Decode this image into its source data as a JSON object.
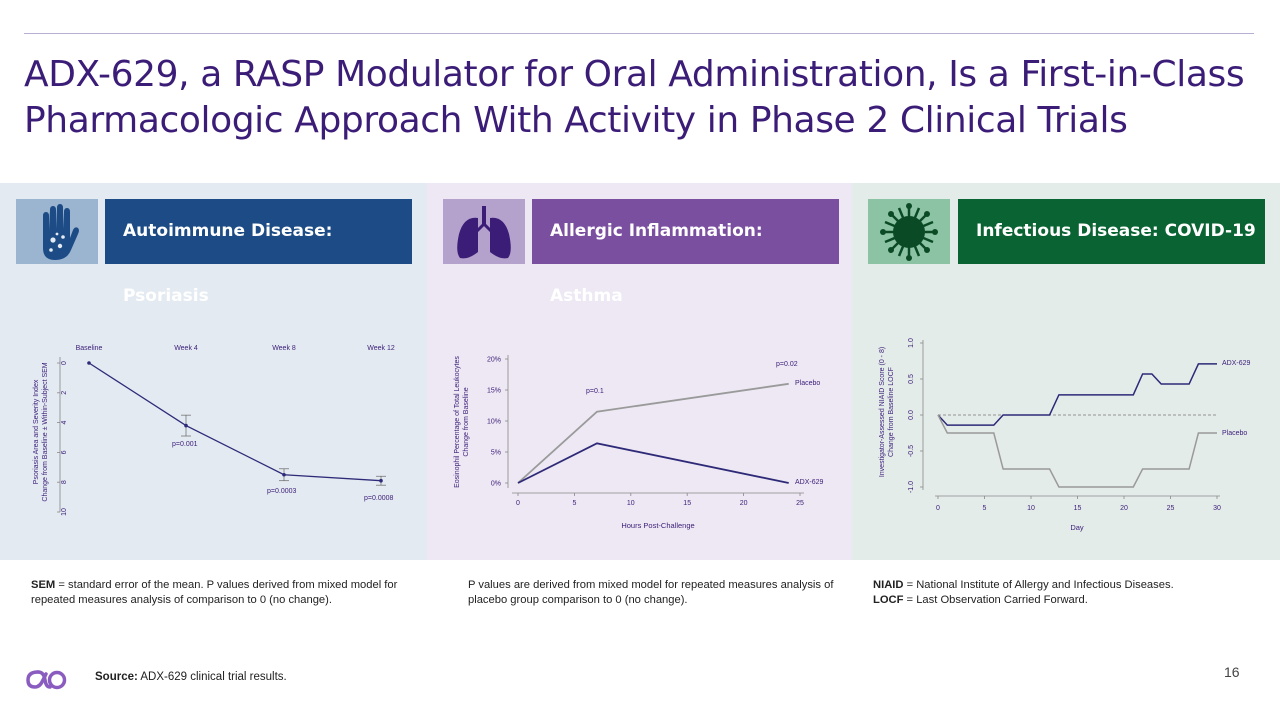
{
  "title": "ADX-629, a RASP Modulator for Oral Administration, Is a First-in-Class Pharmacologic Approach With Activity in Phase 2 Clinical Trials",
  "panels": [
    {
      "banner": "Autoimmune Disease: Psoriasis",
      "icon": "hand-icon",
      "banner_color": "#1d4b85",
      "icon_bg": "#9bb4d0"
    },
    {
      "banner": "Allergic Inflammation: Asthma",
      "icon": "lungs-icon",
      "banner_color": "#7a4fa0",
      "icon_bg": "#b4a2cd"
    },
    {
      "banner": "Infectious Disease: COVID-19",
      "icon": "virus-icon",
      "banner_color": "#0a6332",
      "icon_bg": "#8cc3a4"
    }
  ],
  "notes": {
    "psoriasis_term": "SEM",
    "psoriasis_text": " = standard error of the mean. P values derived from mixed model for repeated measures analysis of comparison to 0 (no change).",
    "asthma_text": "P values are derived from mixed model for repeated measures analysis of placebo group comparison to 0 (no change).",
    "covid_term1": "NIAID",
    "covid_text1": " = National Institute of Allergy and Infectious Diseases.",
    "covid_term2": "LOCF",
    "covid_text2": " = Last Observation Carried Forward."
  },
  "footer": {
    "source_label": "Source:",
    "source_text": " ADX-629 clinical trial results.",
    "page_number": "16"
  },
  "chart_data": [
    {
      "type": "line",
      "categories": [
        "Baseline",
        "Week 4",
        "Week 8",
        "Week 12"
      ],
      "y_ticks": [
        "0",
        "2",
        "4",
        "6",
        "8",
        "10"
      ],
      "ylabel": "Psoriasis Area and Severity Index\nChange from Baseline ± Within-Subject SEM",
      "ylim": [
        0,
        10
      ],
      "y_inverted": true,
      "series": [
        {
          "values": [
            0,
            4.2,
            7.5,
            7.9
          ],
          "errors": [
            0,
            0.7,
            0.4,
            0.3
          ],
          "color": "#2e2a78"
        }
      ],
      "annotations": [
        "p=0.001",
        "p=0.0003",
        "p=0.0008"
      ]
    },
    {
      "type": "line",
      "x_ticks": [
        "0",
        "5",
        "10",
        "15",
        "20",
        "25"
      ],
      "y_ticks": [
        "0%",
        "5%",
        "10%",
        "15%",
        "20%"
      ],
      "xlabel": "Hours Post-Challenge",
      "ylabel": "Eosinophil Percentage of Total Leukocytes\nChange from Baseline",
      "xlim": [
        0,
        25
      ],
      "ylim": [
        0,
        20
      ],
      "series": [
        {
          "name": "Placebo",
          "x": [
            0,
            7,
            24
          ],
          "values": [
            0,
            11.5,
            16
          ],
          "color": "#9a9a9a"
        },
        {
          "name": "ADX-629",
          "x": [
            0,
            7,
            24
          ],
          "values": [
            0,
            6.4,
            0
          ],
          "color": "#2e2a78"
        }
      ],
      "annotations": [
        "p=0.1",
        "p=0.02"
      ]
    },
    {
      "type": "line",
      "x_ticks": [
        "0",
        "5",
        "10",
        "15",
        "20",
        "25",
        "30"
      ],
      "y_ticks": [
        "-1.0",
        "-0.5",
        "0.0",
        "0.5",
        "1.0"
      ],
      "xlabel": "Day",
      "ylabel": "Investigator-Assessed NIAID Score (0 - 8)\nChange from Baseline LOCF",
      "xlim": [
        0,
        30
      ],
      "ylim": [
        -1,
        1
      ],
      "series": [
        {
          "name": "ADX-629",
          "color": "#2e2a78",
          "x": [
            0,
            1,
            6,
            7,
            12,
            13,
            21,
            22,
            23,
            24,
            27,
            28,
            30
          ],
          "values": [
            0,
            -0.14,
            -0.14,
            0,
            0,
            0.28,
            0.28,
            0.57,
            0.57,
            0.43,
            0.43,
            0.71,
            0.71
          ]
        },
        {
          "name": "Placebo",
          "color": "#9a9a9a",
          "x": [
            0,
            1,
            6,
            7,
            12,
            13,
            21,
            22,
            27,
            28,
            30
          ],
          "values": [
            0,
            -0.25,
            -0.25,
            -0.75,
            -0.75,
            -1.0,
            -1.0,
            -0.75,
            -0.75,
            -0.25,
            -0.25
          ]
        }
      ],
      "reference_line": 0
    }
  ]
}
